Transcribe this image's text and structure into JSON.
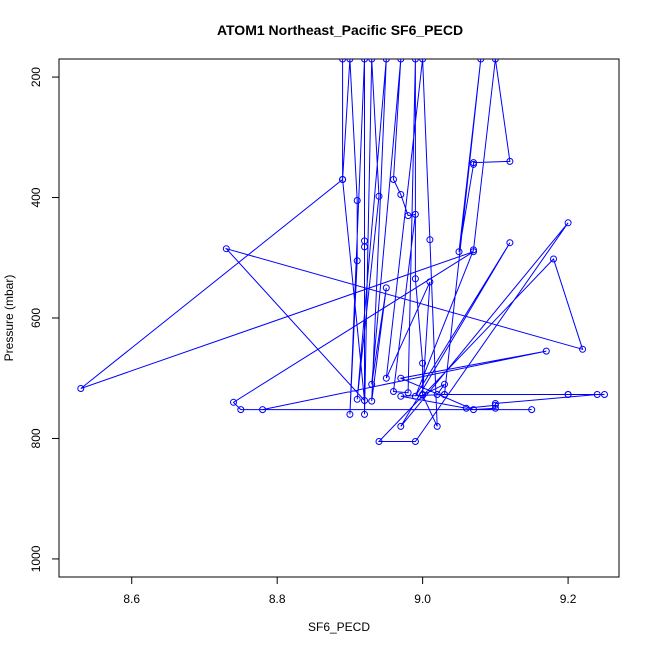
{
  "chart_data": {
    "type": "line",
    "title": "ATOM1 Northeast_Pacific SF6_PECD",
    "xlabel": "SF6_PECD",
    "ylabel": "Pressure (mbar)",
    "xlim": [
      8.5,
      9.27
    ],
    "ylim": [
      1030,
      170
    ],
    "y_reversed": true,
    "x_ticks": [
      8.6,
      8.8,
      9.0,
      9.2
    ],
    "x_tick_labels": [
      "8.6",
      "8.8",
      "9.0",
      "9.2"
    ],
    "y_ticks": [
      200,
      400,
      600,
      800,
      1000
    ],
    "y_tick_labels": [
      "200",
      "400",
      "600",
      "800",
      "1000"
    ],
    "grid": false,
    "series": [
      {
        "color": "#0000ff",
        "marker": "open-circle",
        "points": [
          [
            8.89,
            170
          ],
          [
            8.89,
            370
          ],
          [
            8.9,
            170
          ],
          [
            8.91,
            405
          ],
          [
            8.91,
            505
          ],
          [
            8.9,
            760
          ],
          [
            8.92,
            170
          ],
          [
            8.92,
            472
          ],
          [
            8.92,
            482
          ],
          [
            8.92,
            760
          ],
          [
            8.93,
            170
          ],
          [
            8.94,
            398
          ],
          [
            8.91,
            735
          ],
          [
            8.95,
            170
          ],
          [
            8.93,
            738
          ],
          [
            8.95,
            550
          ],
          [
            8.93,
            710
          ],
          [
            8.97,
            170
          ],
          [
            8.96,
            370
          ],
          [
            8.97,
            395
          ],
          [
            8.98,
            430
          ],
          [
            8.99,
            428
          ],
          [
            8.96,
            722
          ],
          [
            8.98,
            724
          ],
          [
            8.99,
            170
          ],
          [
            8.99,
            535
          ],
          [
            9.0,
            675
          ],
          [
            9.0,
            727
          ],
          [
            9.01,
            540
          ],
          [
            8.95,
            700
          ],
          [
            9.0,
            170
          ],
          [
            9.01,
            470
          ],
          [
            9.02,
            780
          ],
          [
            9.0,
            728
          ],
          [
            9.03,
            710
          ],
          [
            9.02,
            727
          ],
          [
            9.03,
            727
          ],
          [
            9.08,
            170
          ],
          [
            9.05,
            490
          ],
          [
            9.07,
            345
          ],
          [
            9.07,
            342
          ],
          [
            9.12,
            340
          ],
          [
            9.1,
            170
          ],
          [
            9.07,
            487
          ],
          [
            8.99,
            730
          ],
          [
            9.12,
            475
          ],
          [
            8.97,
            780
          ],
          [
            9.2,
            442
          ],
          [
            8.99,
            805
          ],
          [
            8.94,
            805
          ],
          [
            9.18,
            502
          ],
          [
            9.22,
            652
          ],
          [
            8.73,
            485
          ],
          [
            8.92,
            737
          ],
          [
            8.89,
            370
          ],
          [
            8.53,
            717
          ],
          [
            9.07,
            490
          ],
          [
            8.74,
            740
          ],
          [
            8.75,
            752
          ],
          [
            9.15,
            752
          ],
          [
            8.78,
            752
          ],
          [
            9.17,
            655
          ],
          [
            8.97,
            700
          ],
          [
            9.07,
            752
          ],
          [
            9.1,
            750
          ],
          [
            9.1,
            742
          ],
          [
            9.24,
            727
          ],
          [
            9.25,
            727
          ],
          [
            9.2,
            727
          ],
          [
            9.2,
            727
          ],
          [
            9.03,
            727
          ],
          [
            8.97,
            730
          ],
          [
            9.06,
            750
          ],
          [
            9.1,
            745
          ]
        ]
      }
    ]
  }
}
